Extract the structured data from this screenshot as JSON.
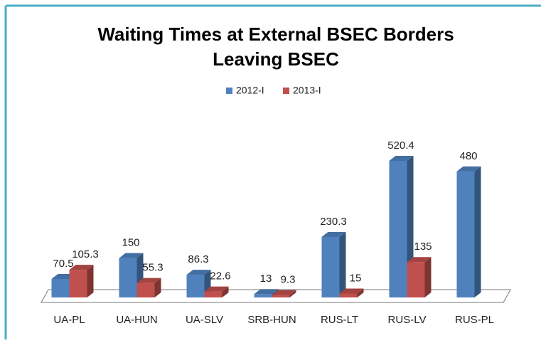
{
  "chart_data": {
    "type": "bar3d",
    "title": [
      "Waiting Times at External BSEC Borders",
      "Leaving BSEC"
    ],
    "categories": [
      "UA-PL",
      "UA-HUN",
      "UA-SLV",
      "SRB-HUN",
      "RUS-LT",
      "RUS-LV",
      "RUS-PL"
    ],
    "series": [
      {
        "name": "2012-I",
        "color": "#4f81bd",
        "values": [
          70.5,
          150,
          86.3,
          13,
          230.3,
          520.4,
          480
        ]
      },
      {
        "name": "2013-I",
        "color": "#c0504d",
        "values": [
          105.3,
          55.3,
          22.6,
          9.3,
          15,
          135,
          null
        ]
      }
    ],
    "legend": "top"
  }
}
